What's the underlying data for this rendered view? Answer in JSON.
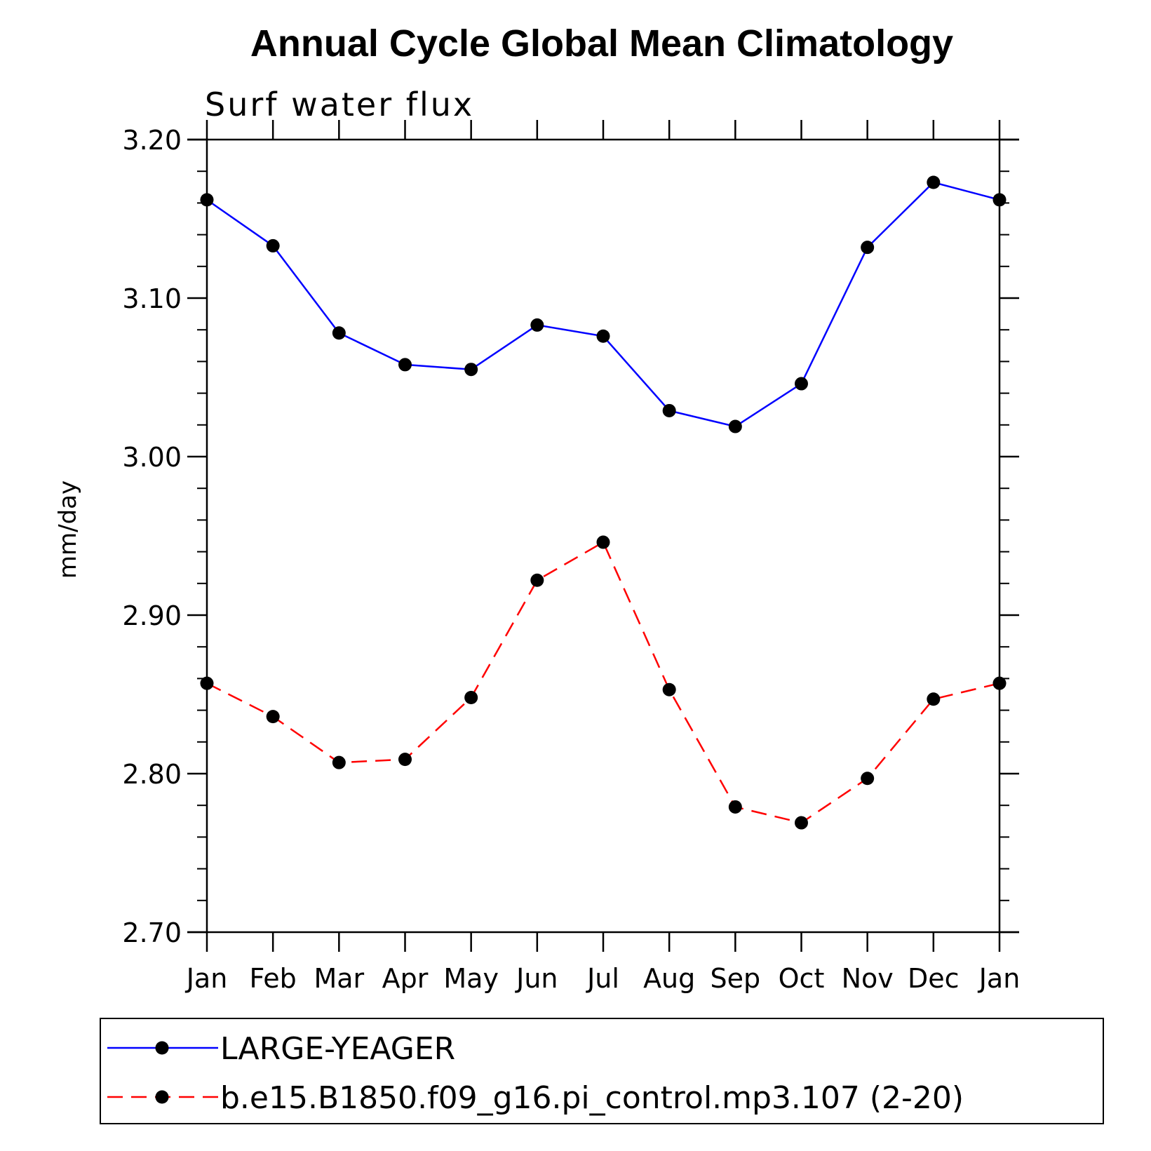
{
  "chart_data": {
    "type": "line",
    "title": "Annual Cycle Global Mean Climatology",
    "subtitle": "Surf water flux",
    "ylabel": "mm/day",
    "xlabel": "",
    "categories": [
      "Jan",
      "Feb",
      "Mar",
      "Apr",
      "May",
      "Jun",
      "Jul",
      "Aug",
      "Sep",
      "Oct",
      "Nov",
      "Dec",
      "Jan"
    ],
    "ylim": [
      2.7,
      3.2
    ],
    "yticks": [
      "2.70",
      "2.80",
      "2.90",
      "3.00",
      "3.10",
      "3.20"
    ],
    "grid": false,
    "legend_position": "bottom",
    "series": [
      {
        "name": "LARGE-YEAGER",
        "color": "#0000ff",
        "line_style": "solid",
        "marker": "filled-circle",
        "values": [
          3.162,
          3.133,
          3.078,
          3.058,
          3.055,
          3.083,
          3.076,
          3.029,
          3.019,
          3.046,
          3.132,
          3.173,
          3.162
        ]
      },
      {
        "name": "b.e15.B1850.f09_g16.pi_control.mp3.107 (2-20)",
        "color": "#ff0000",
        "line_style": "dashed",
        "marker": "filled-circle",
        "values": [
          2.857,
          2.836,
          2.807,
          2.809,
          2.848,
          2.922,
          2.946,
          2.853,
          2.779,
          2.769,
          2.797,
          2.847,
          2.857
        ]
      }
    ]
  }
}
